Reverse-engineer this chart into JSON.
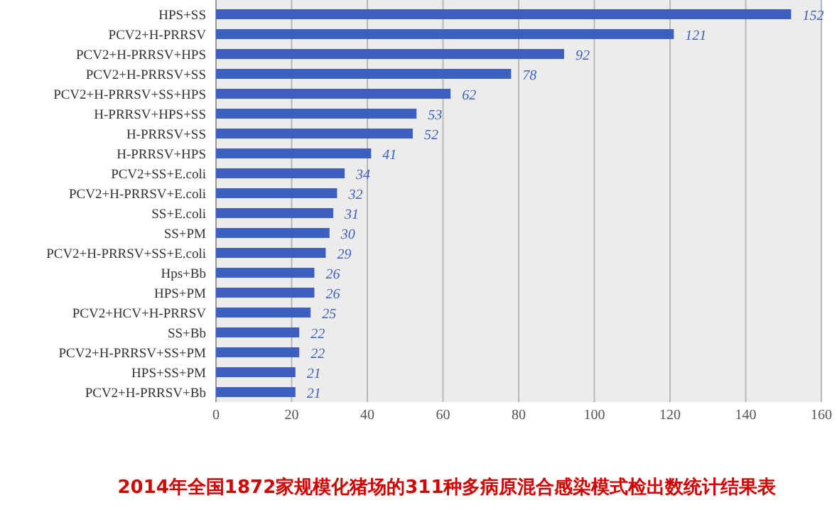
{
  "chart_data": {
    "type": "bar",
    "orientation": "horizontal",
    "title": "2014年全国1872家规模化猪场的311种多病原混合感染模式检出数统计结果表",
    "categories": [
      "HPS+SS",
      "PCV2+H-PRRSV",
      "PCV2+H-PRRSV+HPS",
      "PCV2+H-PRRSV+SS",
      "PCV2+H-PRRSV+SS+HPS",
      "H-PRRSV+HPS+SS",
      "H-PRRSV+SS",
      "H-PRRSV+HPS",
      "PCV2+SS+E.coli",
      "PCV2+H-PRRSV+E.coli",
      "SS+E.coli",
      "SS+PM",
      "PCV2+H-PRRSV+SS+E.coli",
      "Hps+Bb",
      "HPS+PM",
      "PCV2+HCV+H-PRRSV",
      "SS+Bb",
      "PCV2+H-PRRSV+SS+PM",
      "HPS+SS+PM",
      "PCV2+H-PRRSV+Bb"
    ],
    "values": [
      152,
      121,
      92,
      78,
      62,
      53,
      52,
      41,
      34,
      32,
      31,
      30,
      29,
      26,
      26,
      25,
      22,
      22,
      21,
      21
    ],
    "color": "#3d5fbf",
    "data_labels": true,
    "grid": "x",
    "xlim": [
      0,
      160
    ],
    "xticks": [
      0,
      20,
      40,
      60,
      80,
      100,
      120,
      140,
      160
    ]
  }
}
